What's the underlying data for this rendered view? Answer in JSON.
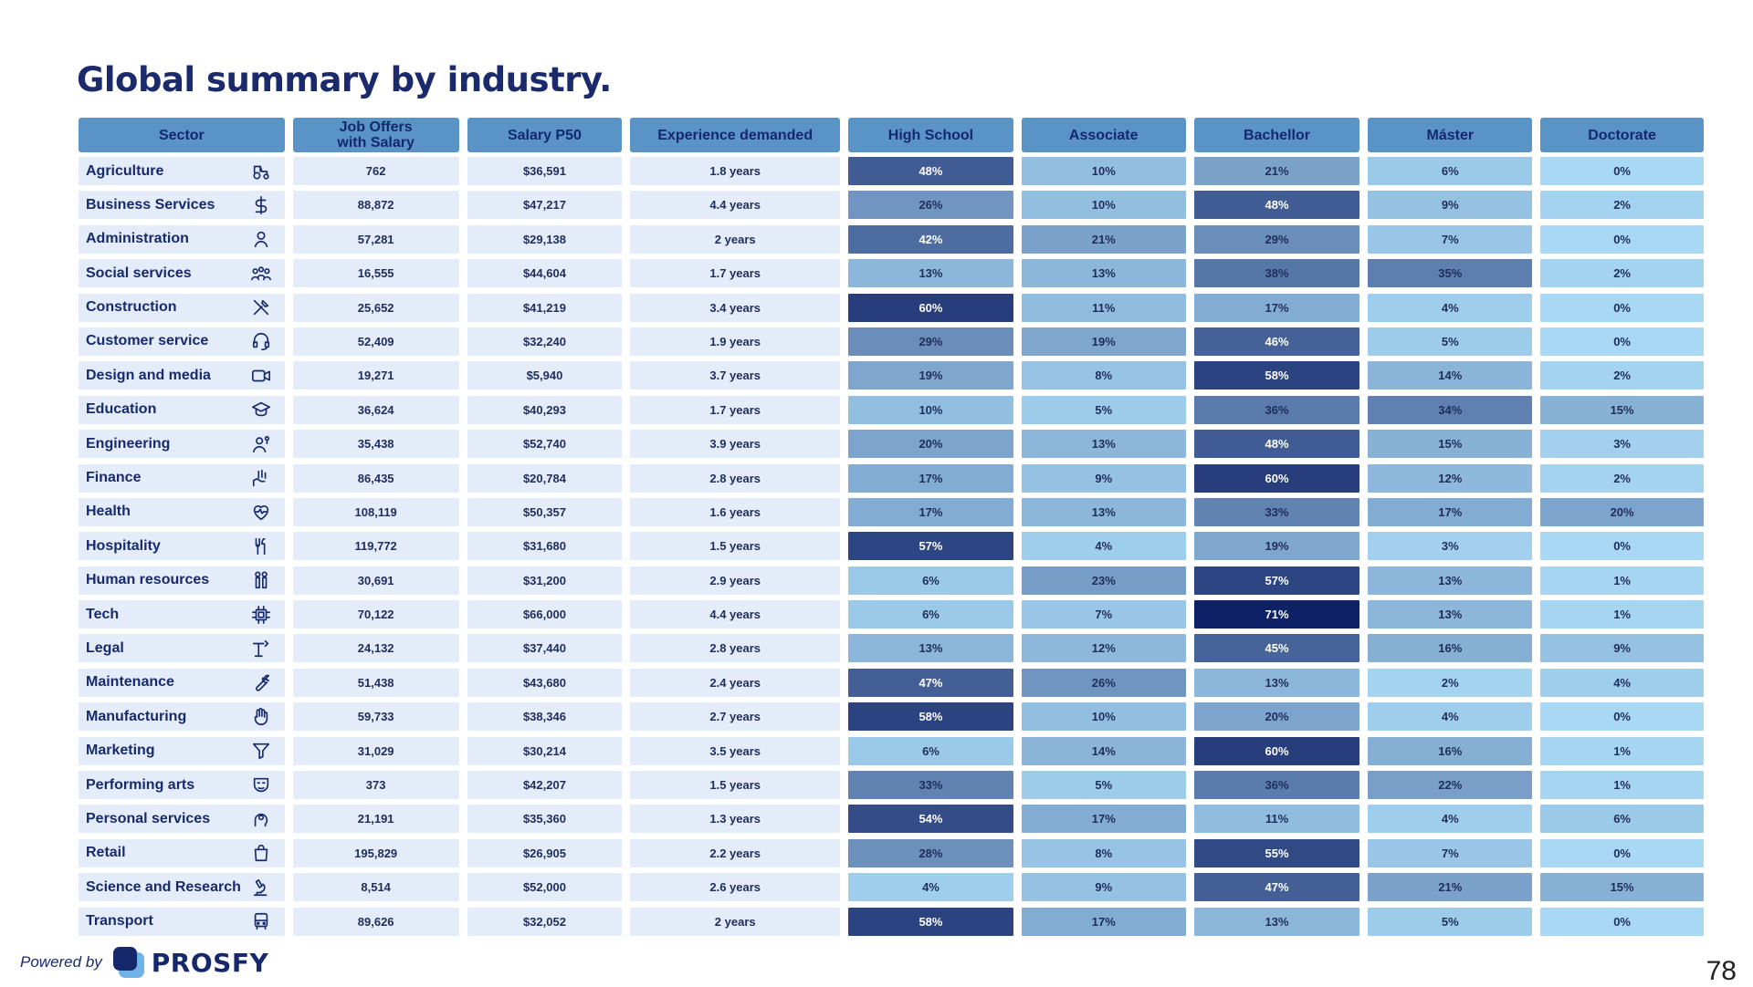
{
  "title": "Global summary by industry.",
  "headers": [
    "Sector",
    "Job Offers\nwith Salary",
    "Salary P50",
    "Experience demanded",
    "High School",
    "Associate",
    "Bachellor",
    "Máster",
    "Doctorate"
  ],
  "footer": {
    "powered_by": "Powered by",
    "brand": "PROSFY",
    "page_number": "78"
  },
  "colors": {
    "header_bg": "#5a94c6",
    "cell_bg": "#e3ecf8",
    "heat_low": "#a8d8f4",
    "heat_high": "#0f2166",
    "text_dark": "#1a2a6c"
  },
  "chart_data": {
    "type": "heatmap",
    "title": "Global summary by industry.",
    "columns": [
      "Sector",
      "Job Offers with Salary",
      "Salary P50",
      "Experience demanded",
      "High School",
      "Associate",
      "Bachellor",
      "Máster",
      "Doctorate"
    ],
    "rows": [
      {
        "sector": "Agriculture",
        "icon": "tractor-icon",
        "offers": "762",
        "salary": "$36,591",
        "experience": "1.8 years",
        "edu": [
          48,
          10,
          21,
          6,
          0
        ]
      },
      {
        "sector": "Business Services",
        "icon": "dollar-icon",
        "offers": "88,872",
        "salary": "$47,217",
        "experience": "4.4 years",
        "edu": [
          26,
          10,
          48,
          9,
          2
        ]
      },
      {
        "sector": "Administration",
        "icon": "person-icon",
        "offers": "57,281",
        "salary": "$29,138",
        "experience": "2 years",
        "edu": [
          42,
          21,
          29,
          7,
          0
        ]
      },
      {
        "sector": "Social services",
        "icon": "people-group-icon",
        "offers": "16,555",
        "salary": "$44,604",
        "experience": "1.7 years",
        "edu": [
          13,
          13,
          38,
          35,
          2
        ]
      },
      {
        "sector": "Construction",
        "icon": "tools-icon",
        "offers": "25,652",
        "salary": "$41,219",
        "experience": "3.4 years",
        "edu": [
          60,
          11,
          17,
          4,
          0
        ]
      },
      {
        "sector": "Customer service",
        "icon": "headset-icon",
        "offers": "52,409",
        "salary": "$32,240",
        "experience": "1.9 years",
        "edu": [
          29,
          19,
          46,
          5,
          0
        ]
      },
      {
        "sector": "Design and media",
        "icon": "video-camera-icon",
        "offers": "19,271",
        "salary": "$5,940",
        "experience": "3.7 years",
        "edu": [
          19,
          8,
          58,
          14,
          2
        ]
      },
      {
        "sector": "Education",
        "icon": "graduation-cap-icon",
        "offers": "36,624",
        "salary": "$40,293",
        "experience": "1.7 years",
        "edu": [
          10,
          5,
          36,
          34,
          15
        ]
      },
      {
        "sector": "Engineering",
        "icon": "engineer-icon",
        "offers": "35,438",
        "salary": "$52,740",
        "experience": "3.9 years",
        "edu": [
          20,
          13,
          48,
          15,
          3
        ]
      },
      {
        "sector": "Finance",
        "icon": "money-hand-icon",
        "offers": "86,435",
        "salary": "$20,784",
        "experience": "2.8 years",
        "edu": [
          17,
          9,
          60,
          12,
          2
        ]
      },
      {
        "sector": "Health",
        "icon": "heart-pulse-icon",
        "offers": "108,119",
        "salary": "$50,357",
        "experience": "1.6 years",
        "edu": [
          17,
          13,
          33,
          17,
          20
        ]
      },
      {
        "sector": "Hospitality",
        "icon": "cutlery-icon",
        "offers": "119,772",
        "salary": "$31,680",
        "experience": "1.5 years",
        "edu": [
          57,
          4,
          19,
          3,
          0
        ]
      },
      {
        "sector": "Human resources",
        "icon": "two-people-icon",
        "offers": "30,691",
        "salary": "$31,200",
        "experience": "2.9 years",
        "edu": [
          6,
          23,
          57,
          13,
          1
        ]
      },
      {
        "sector": "Tech",
        "icon": "chip-icon",
        "offers": "70,122",
        "salary": "$66,000",
        "experience": "4.4 years",
        "edu": [
          6,
          7,
          71,
          13,
          1
        ]
      },
      {
        "sector": "Legal",
        "icon": "podium-icon",
        "offers": "24,132",
        "salary": "$37,440",
        "experience": "2.8 years",
        "edu": [
          13,
          12,
          45,
          16,
          9
        ]
      },
      {
        "sector": "Maintenance",
        "icon": "wrench-icon",
        "offers": "51,438",
        "salary": "$43,680",
        "experience": "2.4 years",
        "edu": [
          47,
          26,
          13,
          2,
          4
        ]
      },
      {
        "sector": "Manufacturing",
        "icon": "hand-icon",
        "offers": "59,733",
        "salary": "$38,346",
        "experience": "2.7 years",
        "edu": [
          58,
          10,
          20,
          4,
          0
        ]
      },
      {
        "sector": "Marketing",
        "icon": "funnel-icon",
        "offers": "31,029",
        "salary": "$30,214",
        "experience": "3.5 years",
        "edu": [
          6,
          14,
          60,
          16,
          1
        ]
      },
      {
        "sector": "Performing arts",
        "icon": "theater-mask-icon",
        "offers": "373",
        "salary": "$42,207",
        "experience": "1.5 years",
        "edu": [
          33,
          5,
          36,
          22,
          1
        ]
      },
      {
        "sector": "Personal services",
        "icon": "head-gear-icon",
        "offers": "21,191",
        "salary": "$35,360",
        "experience": "1.3 years",
        "edu": [
          54,
          17,
          11,
          4,
          6
        ]
      },
      {
        "sector": "Retail",
        "icon": "shopping-bag-icon",
        "offers": "195,829",
        "salary": "$26,905",
        "experience": "2.2 years",
        "edu": [
          28,
          8,
          55,
          7,
          0
        ]
      },
      {
        "sector": "Science and Research",
        "icon": "microscope-icon",
        "offers": "8,514",
        "salary": "$52,000",
        "experience": "2.6 years",
        "edu": [
          4,
          9,
          47,
          21,
          15
        ]
      },
      {
        "sector": "Transport",
        "icon": "bus-icon",
        "offers": "89,626",
        "salary": "$32,052",
        "experience": "2 years",
        "edu": [
          58,
          17,
          13,
          5,
          0
        ]
      }
    ],
    "value_range": [
      0,
      71
    ]
  }
}
